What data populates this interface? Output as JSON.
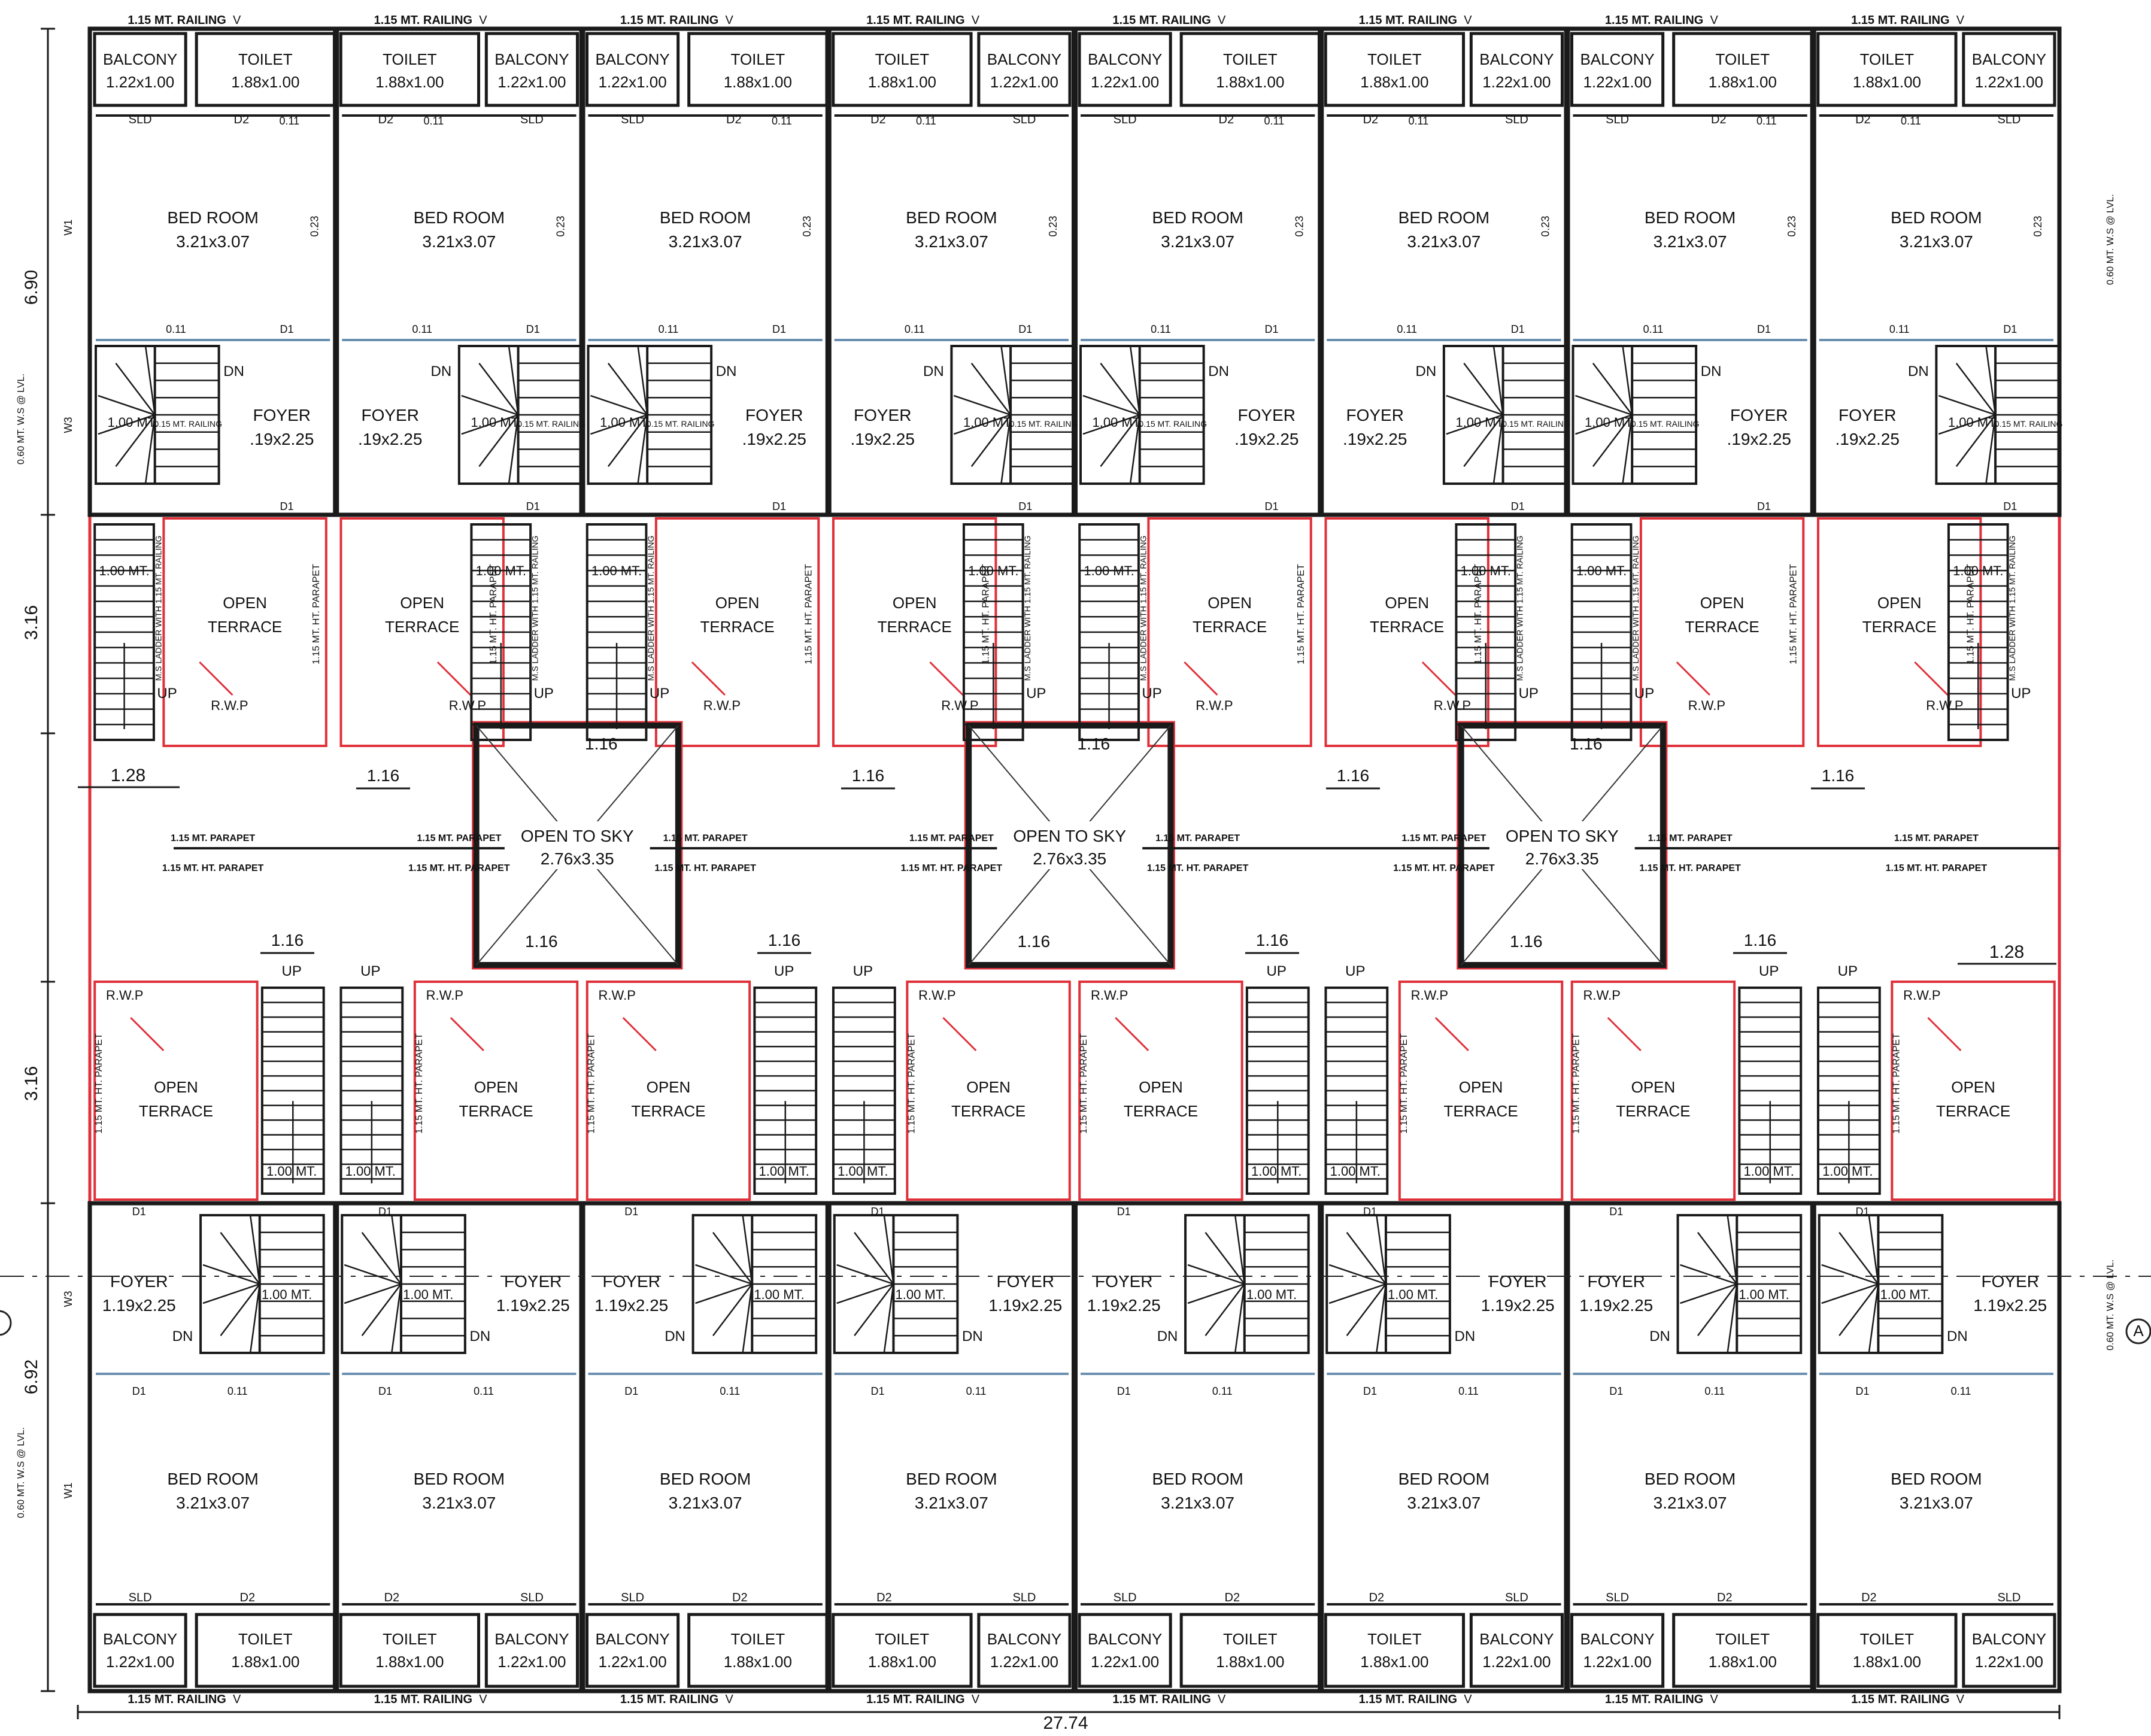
{
  "colors": {
    "wall": "#1a1a1a",
    "outline": "#e0303a",
    "paper": "#ffffff",
    "hatch": "#3a3a3a",
    "rwp": "#e0303a"
  },
  "units": {
    "count": 8,
    "rooms": {
      "bedroom": {
        "name": "BED ROOM",
        "size": "3.21x3.07"
      },
      "toilet": {
        "name": "TOILET",
        "size": "1.88x1.00"
      },
      "balcony": {
        "name": "BALCONY",
        "size": "1.22x1.00"
      },
      "foyer": {
        "name": "FOYER",
        "size": "1.19x2.25"
      },
      "foyer_top": {
        "name": "FOYER",
        "size": ".19x2.25"
      },
      "terrace": {
        "name": "OPEN",
        "name2": "TERRACE"
      }
    },
    "tags": {
      "sld": "SLD",
      "d1": "D1",
      "d2": "D2",
      "v": "V",
      "w1": "W1",
      "w3": "W3",
      "wall011": "0.11",
      "wall023": "0.23",
      "dn": "DN",
      "up": "UP",
      "stair_w": "1.00 MT.",
      "railing_small": "0.15 MT. RAILING"
    },
    "notes": {
      "railing": "1.15 MT. RAILING",
      "parapet": "1.15 MT. HT. PARAPET",
      "parapet_short": "1.15 MT. PARAPET",
      "ms_ladder": "M.S LADDER WITH 1.15 MT. RAILING",
      "rwp": "R.W.P"
    }
  },
  "courts": {
    "label": "OPEN TO SKY",
    "size": "2.76x3.35",
    "dim": "1.16"
  },
  "dimensions": {
    "overall_width": "27.74",
    "left_top": "6.90",
    "left_mid1": "3.16",
    "left_mid2": "3.16",
    "left_bottom": "6.92",
    "setback_1": "1.28",
    "setback_2": "1.16",
    "window_note": "0.60 MT. W.S @ LVL."
  },
  "grid": {
    "bubble_left": "",
    "bubble_right": "A"
  }
}
